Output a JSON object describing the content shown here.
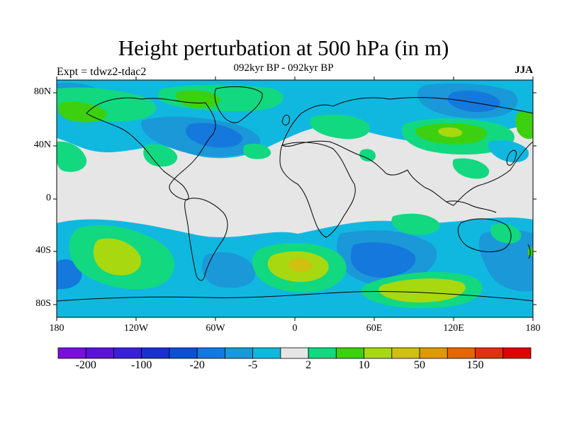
{
  "title": "Height perturbation at 500 hPa (in m)",
  "subtitle": "092kyr BP - 092kyr BP",
  "left_label": "Expt = tdwz2-tdac2",
  "right_label": "JJA",
  "lat_labels": [
    "80N",
    "40N",
    "0",
    "40S",
    "80S"
  ],
  "lon_labels": [
    "180",
    "120W",
    "60W",
    "0",
    "60E",
    "120E",
    "180"
  ],
  "colorbar": {
    "labels": [
      "-200",
      "-100",
      "-20",
      "-5",
      "2",
      "10",
      "50",
      "150"
    ],
    "colors": [
      "#7a10d8",
      "#5a12d6",
      "#3a20d4",
      "#1a30d0",
      "#0a50d0",
      "#1478dc",
      "#1a98d8",
      "#10b8e0",
      "#e6e6e6",
      "#12d880",
      "#3cd010",
      "#a8d810",
      "#d0c010",
      "#e09808",
      "#e06808",
      "#e03010",
      "#e00000"
    ]
  },
  "palette": {
    "ocean_bg": "#e6e6e6",
    "blue_light": "#10b8e0",
    "blue_mid": "#1a98d8",
    "blue_dark": "#1478dc",
    "green_light": "#12d880",
    "green_mid": "#3cd010",
    "yellow_green": "#a8d810",
    "yellow": "#d0c010"
  }
}
